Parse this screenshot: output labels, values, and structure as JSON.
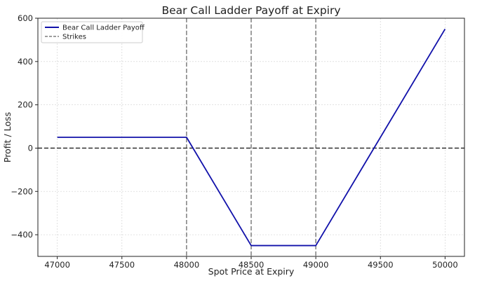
{
  "chart_data": {
    "type": "line",
    "title": "Bear Call Ladder Payoff at Expiry",
    "xlabel": "Spot Price at Expiry",
    "ylabel": "Profit / Loss",
    "xlim": [
      46850,
      50150
    ],
    "ylim": [
      -500,
      600
    ],
    "xticks": [
      47000,
      47500,
      48000,
      48500,
      49000,
      49500,
      50000
    ],
    "yticks": [
      -400,
      -200,
      0,
      200,
      400,
      600
    ],
    "xtick_labels": [
      "47000",
      "47500",
      "48000",
      "48500",
      "49000",
      "49500",
      "50000"
    ],
    "ytick_labels": [
      "−400",
      "−200",
      "0",
      "200",
      "400",
      "600"
    ],
    "grid": true,
    "legend_position": "top-left",
    "series": [
      {
        "name": "Bear Call Ladder Payoff",
        "color": "#1111aa",
        "style": "solid",
        "x": [
          47000,
          48000,
          48500,
          49000,
          50000
        ],
        "y": [
          50,
          50,
          -450,
          -450,
          550
        ]
      }
    ],
    "strikes": {
      "name": "Strikes",
      "color": "#7f7f7f",
      "style": "dashed",
      "values": [
        48000,
        48500,
        49000
      ]
    },
    "zero_line": {
      "value": 0,
      "color": "#222222",
      "style": "dashed"
    }
  }
}
